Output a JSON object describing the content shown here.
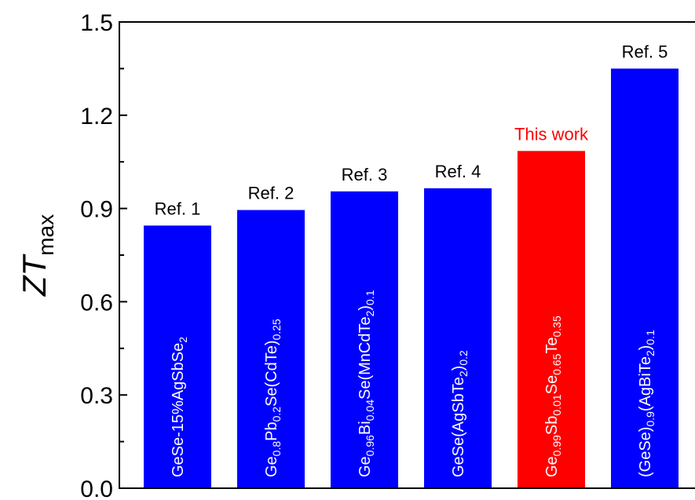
{
  "chart_data": {
    "type": "bar",
    "ylabel": "ZT",
    "ylabel_subscript": "max",
    "ylim": [
      0.0,
      1.5
    ],
    "yticks": [
      "0.0",
      "0.3",
      "0.6",
      "0.9",
      "1.2",
      "1.5"
    ],
    "grid": false,
    "categories": [
      "GeSe-15%AgSbSe2",
      "Ge0.8Pb0.2Se(CdTe)0.25",
      "Ge0.96Bi0.04Se(MnCdTe2)0.1",
      "GeSe(AgSbTe2)0.2",
      "Ge0.99Sb0.01Se0.65Te0.35",
      "(GeSe)0.9(AgBiTe2)0.1"
    ],
    "values": [
      0.845,
      0.895,
      0.955,
      0.965,
      1.085,
      1.35
    ],
    "top_labels": [
      "Ref. 1",
      "Ref. 2",
      "Ref. 3",
      "Ref. 4",
      "This work",
      "Ref. 5"
    ],
    "bar_text": [
      [
        {
          "t": "GeSe-15%AgSbSe"
        },
        {
          "t": "2",
          "sub": true
        }
      ],
      [
        {
          "t": "Ge"
        },
        {
          "t": "0.8",
          "sub": true
        },
        {
          "t": "Pb"
        },
        {
          "t": "0.2",
          "sub": true
        },
        {
          "t": "Se(CdTe)"
        },
        {
          "t": "0.25",
          "sub": true
        }
      ],
      [
        {
          "t": "Ge"
        },
        {
          "t": "0.96",
          "sub": true
        },
        {
          "t": "Bi"
        },
        {
          "t": "0.04",
          "sub": true
        },
        {
          "t": "Se(MnCdTe"
        },
        {
          "t": "2",
          "sub": true
        },
        {
          "t": ")"
        },
        {
          "t": "0.1",
          "sub": true
        }
      ],
      [
        {
          "t": "GeSe(AgSbTe"
        },
        {
          "t": "2",
          "sub": true
        },
        {
          "t": ")"
        },
        {
          "t": "0.2",
          "sub": true
        }
      ],
      [
        {
          "t": "Ge"
        },
        {
          "t": "0.99",
          "sub": true
        },
        {
          "t": "Sb"
        },
        {
          "t": "0.01",
          "sub": true
        },
        {
          "t": "Se"
        },
        {
          "t": "0.65",
          "sub": true
        },
        {
          "t": "Te"
        },
        {
          "t": "0.35",
          "sub": true
        }
      ],
      [
        {
          "t": "(GeSe)"
        },
        {
          "t": "0.9",
          "sub": true
        },
        {
          "t": "(AgBiTe"
        },
        {
          "t": "2",
          "sub": true
        },
        {
          "t": ")"
        },
        {
          "t": "0.1",
          "sub": true
        }
      ]
    ],
    "colors": {
      "bars": [
        "#0000ff",
        "#0000ff",
        "#0000ff",
        "#0000ff",
        "#ff0000",
        "#0000ff"
      ],
      "top_labels": [
        "#000000",
        "#000000",
        "#000000",
        "#000000",
        "#ff0000",
        "#000000"
      ]
    }
  }
}
